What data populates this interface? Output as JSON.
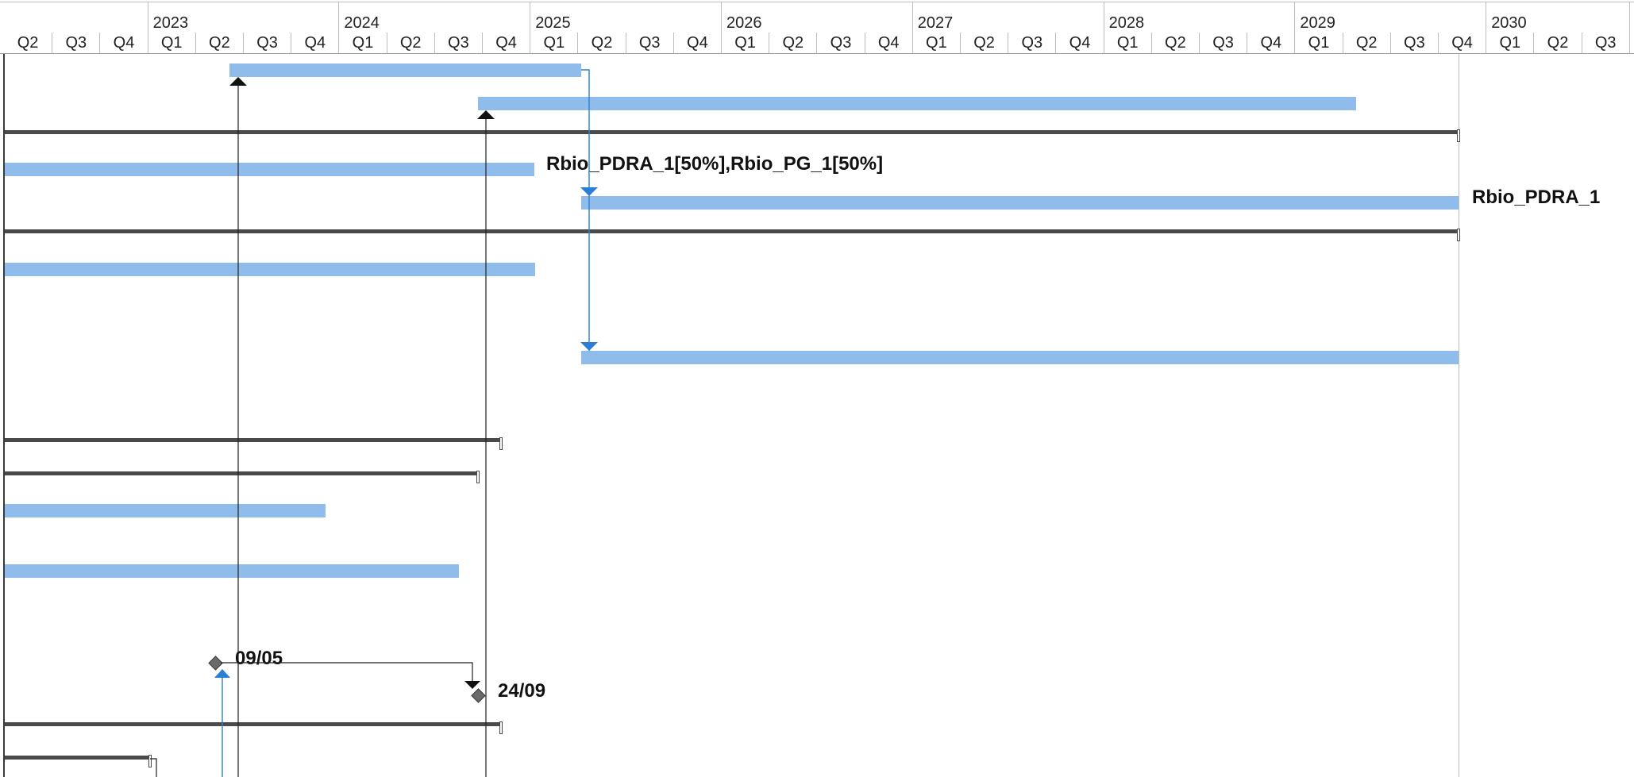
{
  "timescale": {
    "years": [
      {
        "label": ""
      },
      {
        "label": "2023"
      },
      {
        "label": "2024"
      },
      {
        "label": "2025"
      },
      {
        "label": "2026"
      },
      {
        "label": "2027"
      },
      {
        "label": "2028"
      },
      {
        "label": "2029"
      },
      {
        "label": "2030"
      }
    ],
    "quarters": [
      "Q2",
      "Q3",
      "Q4",
      "Q1",
      "Q2",
      "Q3",
      "Q4",
      "Q1",
      "Q2",
      "Q3",
      "Q4",
      "Q1",
      "Q2",
      "Q3",
      "Q4",
      "Q1",
      "Q2",
      "Q3",
      "Q4",
      "Q1",
      "Q2",
      "Q3",
      "Q4",
      "Q1",
      "Q2",
      "Q3",
      "Q4",
      "Q1",
      "Q2",
      "Q3",
      "Q4",
      "Q1",
      "Q2",
      "Q3"
    ]
  },
  "labels": {
    "resource_pdra_pg": "Rbio_PDRA_1[50%],Rbio_PG_1[50%]",
    "resource_pdra": "Rbio_PDRA_1",
    "milestone_1_date": "09/05",
    "milestone_2_date": "24/09"
  },
  "colors": {
    "task": "#8fbceb",
    "summary": "#4a4a4a",
    "link": "#1f1f1f",
    "link_critical": "#2a7fd4"
  }
}
